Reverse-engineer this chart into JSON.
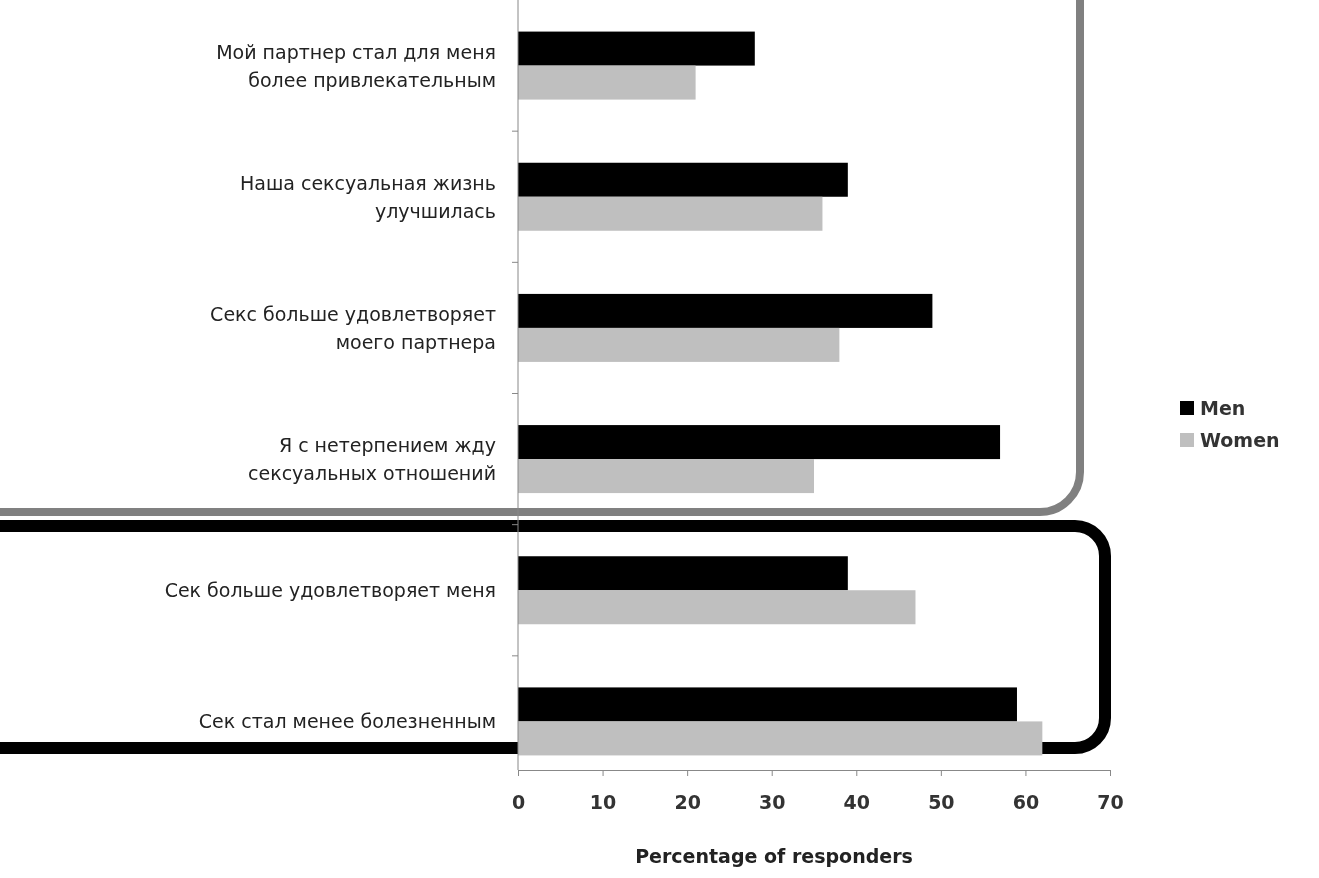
{
  "chart_data": {
    "type": "bar",
    "orientation": "horizontal",
    "xlabel": "Percentage of responders",
    "categories": [
      "Мой партнер стал для меня более привлекательным",
      "Наша сексуальная жизнь улучшилась",
      "Секс больше удовлетворяет моего партнера",
      "Я с нетерпением жду сексуальных отношений",
      "Сек больше удовлетворяет меня",
      "Сек стал менее болезненным"
    ],
    "series": [
      {
        "name": "Men",
        "color": "#000000",
        "values": [
          28,
          39,
          49,
          57,
          39,
          59
        ]
      },
      {
        "name": "Women",
        "color": "#bfbfbf",
        "values": [
          21,
          36,
          38,
          35,
          47,
          62
        ]
      }
    ],
    "xlim": [
      0,
      70
    ],
    "xticks": [
      0,
      10,
      20,
      30,
      40,
      50,
      60,
      70
    ],
    "legend": "right"
  }
}
